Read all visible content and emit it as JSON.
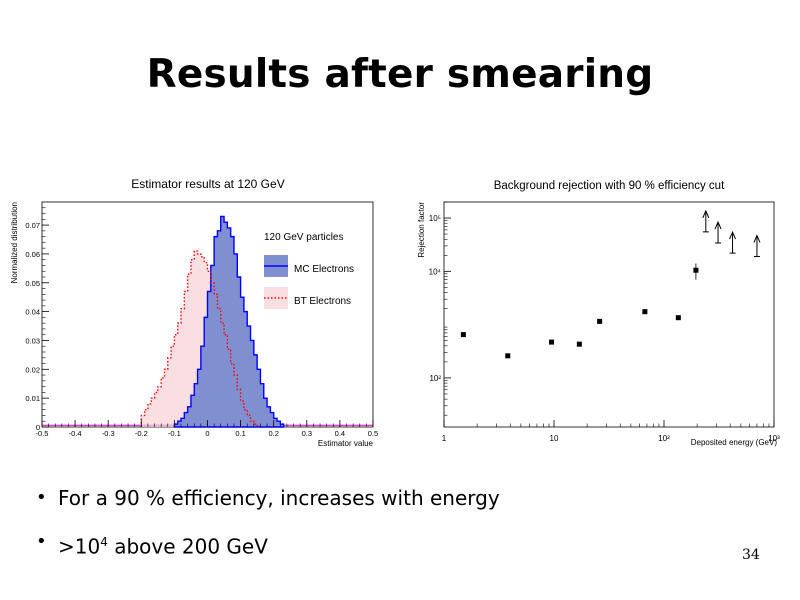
{
  "slide": {
    "title": "Results after smearing",
    "page_number": "34"
  },
  "bullets": [
    {
      "text": "For a 90 % efficiency, increases with energy"
    },
    {
      "prefix": ">10",
      "sup": "4",
      "suffix": " above 200 GeV"
    }
  ],
  "chart_data": [
    {
      "type": "histogram",
      "title": "Estimator results at 120 GeV",
      "xlabel": "Estimator value",
      "ylabel": "Normalized distribution",
      "xlim": [
        -0.5,
        0.5
      ],
      "ylim": [
        0,
        0.078
      ],
      "xticks": [
        "-0.5",
        "-0.4",
        "-0.3",
        "-0.2",
        "-0.1",
        "0",
        "0.1",
        "0.2",
        "0.3",
        "0.4",
        "0.5"
      ],
      "yticks": [
        "0",
        "0.01",
        "0.02",
        "0.03",
        "0.04",
        "0.05",
        "0.06",
        "0.07"
      ],
      "legend_header": "120 GeV particles",
      "legend_position": "top-right",
      "series": [
        {
          "name": "MC Electrons",
          "style": "filled-step",
          "line_color": "#0000ff",
          "fill_color": "#7f8fd0",
          "bin_width": 0.01,
          "bins_start": -0.1,
          "values": [
            0.001,
            0.002,
            0.003,
            0.005,
            0.007,
            0.011,
            0.015,
            0.02,
            0.028,
            0.038,
            0.047,
            0.056,
            0.066,
            0.068,
            0.073,
            0.071,
            0.069,
            0.066,
            0.06,
            0.052,
            0.045,
            0.04,
            0.035,
            0.03,
            0.025,
            0.02,
            0.015,
            0.01,
            0.007,
            0.005,
            0.003,
            0.002,
            0.001
          ]
        },
        {
          "name": "BT Electrons",
          "style": "dotted-step",
          "line_color": "#ff0000",
          "fill_color": "#f6d0d6",
          "bin_width": 0.01,
          "bins_start": -0.2,
          "values": [
            0.004,
            0.006,
            0.008,
            0.01,
            0.012,
            0.014,
            0.017,
            0.02,
            0.024,
            0.028,
            0.032,
            0.036,
            0.041,
            0.047,
            0.053,
            0.058,
            0.061,
            0.06,
            0.059,
            0.057,
            0.054,
            0.05,
            0.046,
            0.041,
            0.036,
            0.032,
            0.027,
            0.022,
            0.018,
            0.013,
            0.009,
            0.006,
            0.004,
            0.002,
            0.001
          ]
        }
      ]
    },
    {
      "type": "scatter",
      "title": "Background rejection with 90 % efficiency cut",
      "xlabel": "Deposited energy (GeV)",
      "ylabel": "Rejection factor",
      "x_scale": "log",
      "y_scale": "log",
      "xlim": [
        1,
        1000
      ],
      "ylim": [
        12,
        200000
      ],
      "xticks": [
        {
          "value": 1,
          "label": "1"
        },
        {
          "value": 10,
          "label": "10"
        },
        {
          "value": 100,
          "label": "10²"
        },
        {
          "value": 1000,
          "label": "10³"
        }
      ],
      "yticks": [
        {
          "value": 100,
          "label": "10²"
        },
        {
          "value": 10000,
          "label": "10⁴"
        },
        {
          "value": 100000,
          "label": "10⁵"
        }
      ],
      "points": [
        {
          "x": 1.5,
          "y": 650
        },
        {
          "x": 3.8,
          "y": 260
        },
        {
          "x": 9.5,
          "y": 470
        },
        {
          "x": 17,
          "y": 430
        },
        {
          "x": 26,
          "y": 1150
        },
        {
          "x": 67,
          "y": 1750
        },
        {
          "x": 135,
          "y": 1350
        },
        {
          "x": 195,
          "y": 10500,
          "yerr_low": 7000,
          "yerr_high": 14000
        }
      ],
      "lower_limits": [
        {
          "x": 240,
          "y": 55000
        },
        {
          "x": 310,
          "y": 34000
        },
        {
          "x": 420,
          "y": 22000
        },
        {
          "x": 700,
          "y": 19000
        }
      ]
    }
  ]
}
